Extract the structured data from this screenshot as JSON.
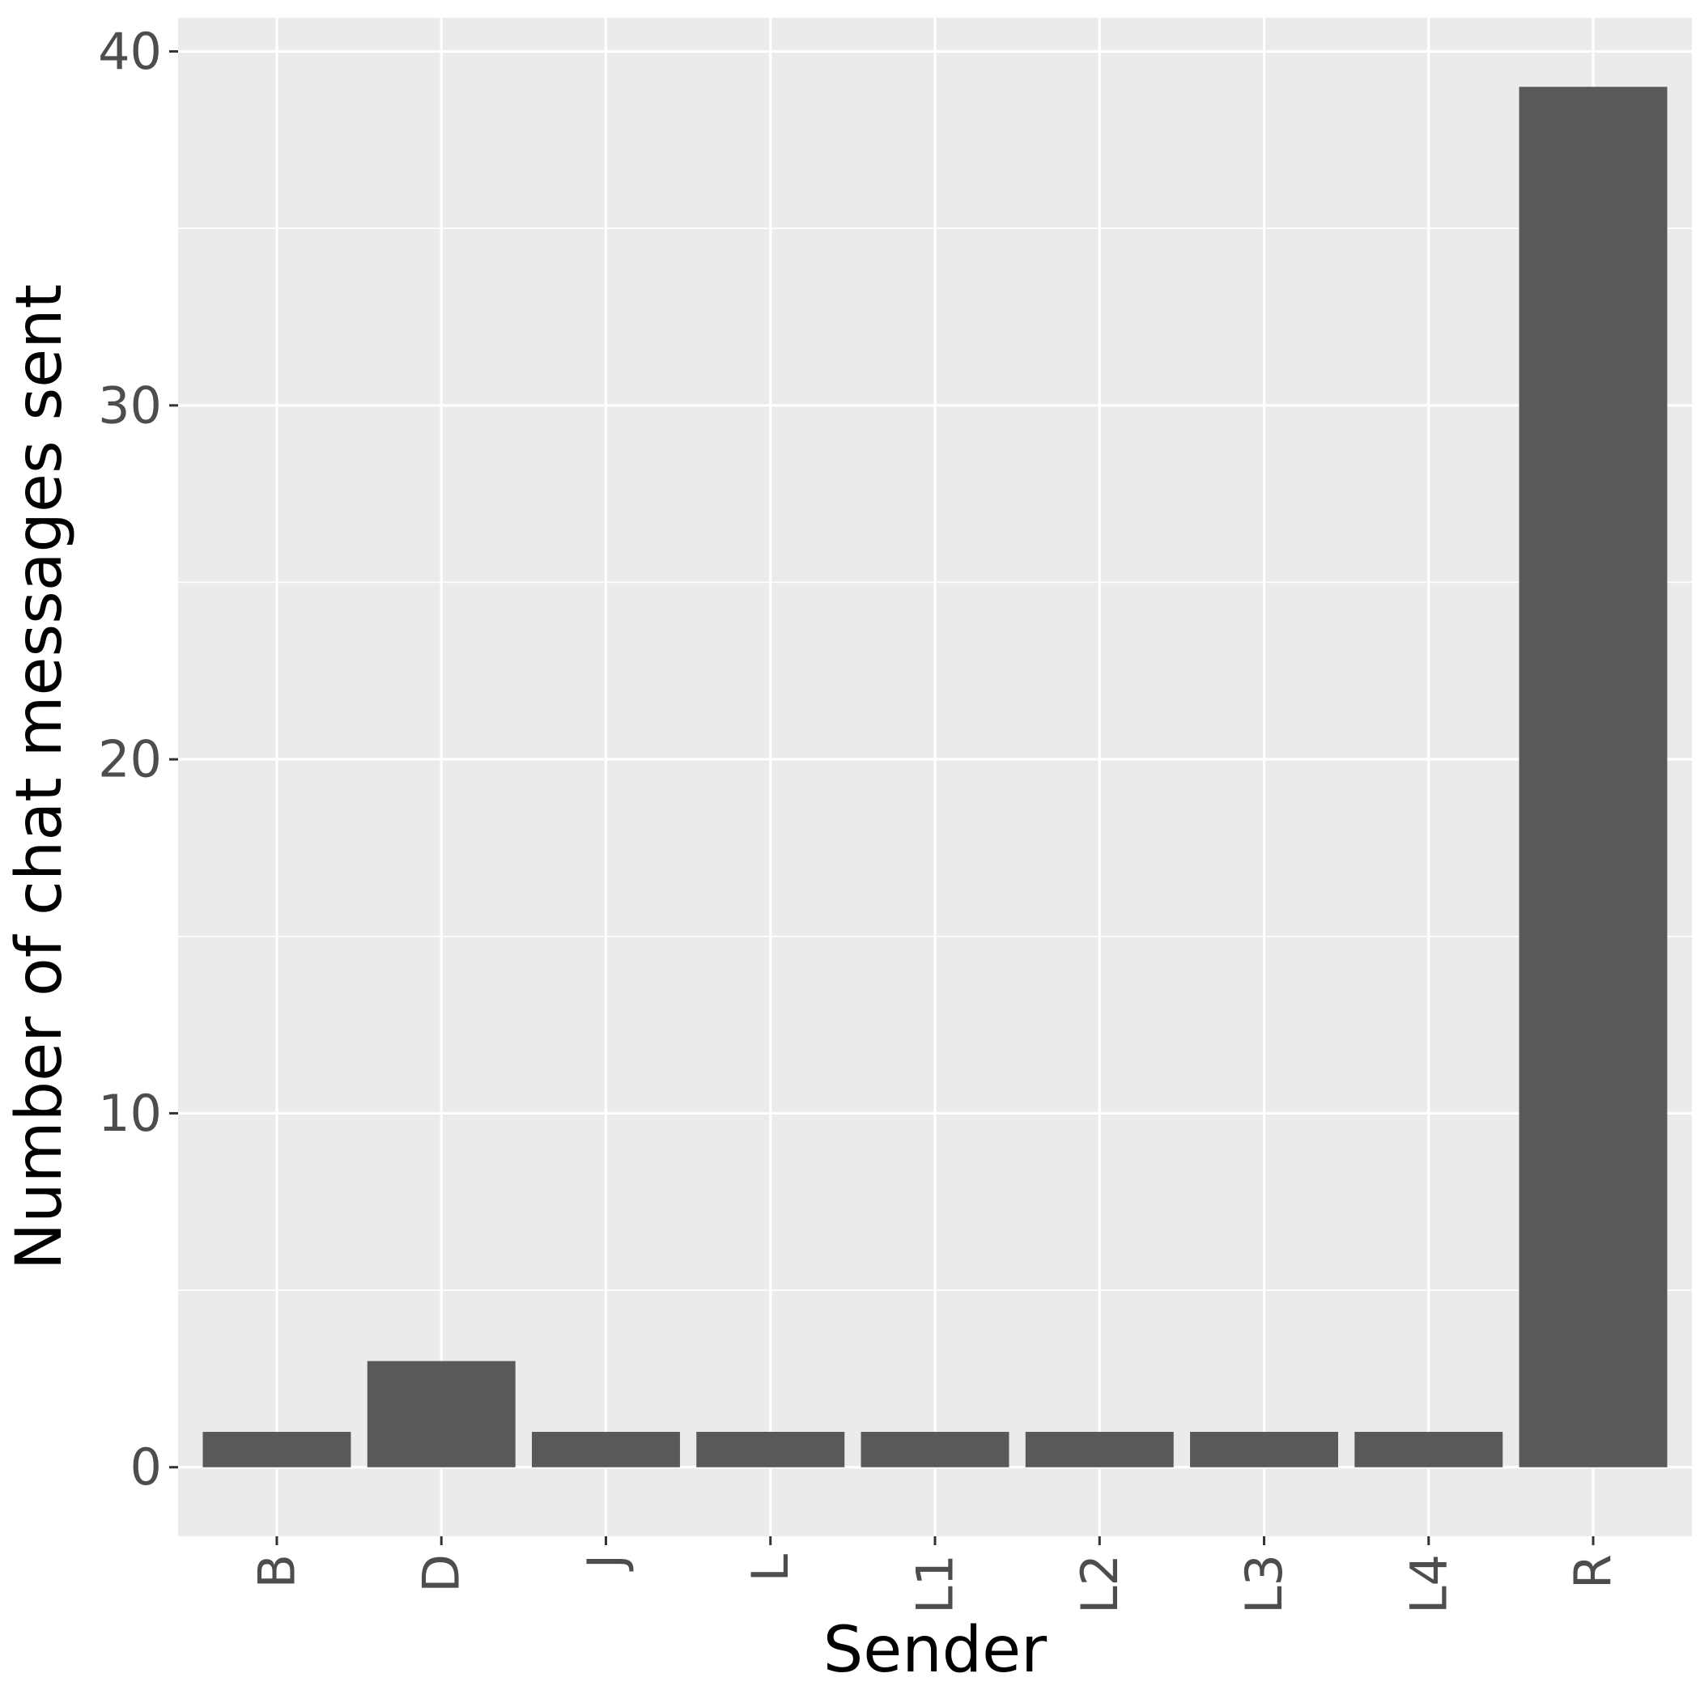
{
  "chart_data": {
    "type": "bar",
    "title": "",
    "xlabel": "Sender",
    "ylabel": "Number of chat messages sent",
    "categories": [
      "B",
      "D",
      "J",
      "L",
      "L1",
      "L2",
      "L3",
      "L4",
      "R"
    ],
    "values": [
      1,
      3,
      1,
      1,
      1,
      1,
      1,
      1,
      39
    ],
    "yticks": [
      0,
      10,
      20,
      30,
      40
    ],
    "ylim": [
      -1.95,
      40.95
    ],
    "grid": true,
    "legend": "none",
    "colors": {
      "bar": "#595959",
      "panel": "#EBEBEB",
      "grid": "#FFFFFF",
      "tick_text": "#4D4D4D",
      "axis_title": "#000000",
      "tick_mark": "#333333"
    }
  }
}
